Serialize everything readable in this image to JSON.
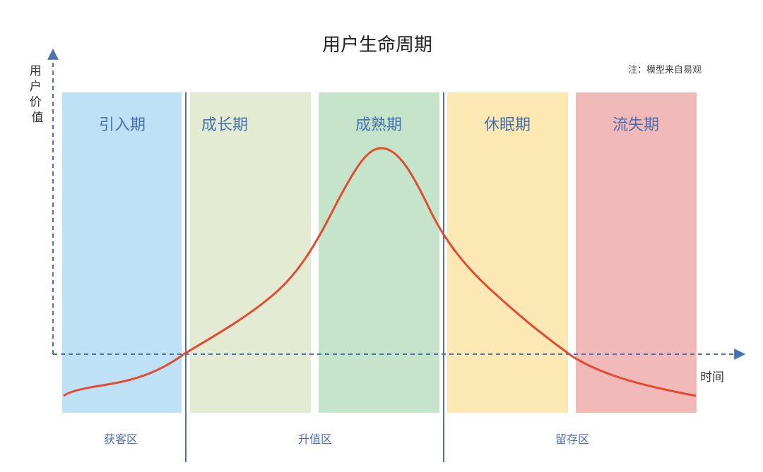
{
  "title": "用户生命周期",
  "note": "注：模型来自易观",
  "y_axis_label": "用户价值",
  "x_axis_label": "时间",
  "stages": [
    {
      "label": "引入期",
      "color": "#bfe1f5"
    },
    {
      "label": "成长期",
      "color": "#e3ecd2"
    },
    {
      "label": "成熟期",
      "color": "#c4e5c9"
    },
    {
      "label": "休眠期",
      "color": "#fbe8b3"
    },
    {
      "label": "流失期",
      "color": "#f1b9b7"
    }
  ],
  "zones": [
    {
      "label": "获客区"
    },
    {
      "label": "升值区"
    },
    {
      "label": "留存区"
    }
  ],
  "colors": {
    "curve": "#e34a33",
    "axis": "#4a72b5",
    "stage_text": "#4a6fb0"
  }
}
